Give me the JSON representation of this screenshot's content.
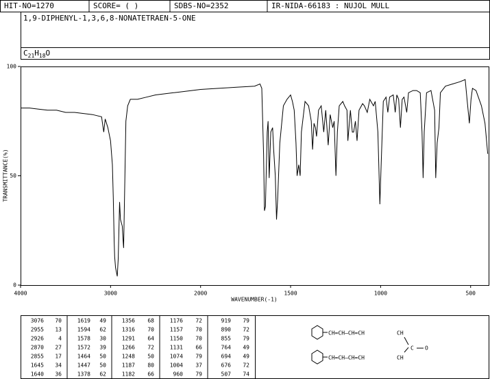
{
  "header": {
    "hit": "HIT-NO=1270",
    "score": "SCORE= (   )",
    "sdbs": "SDBS-NO=2352",
    "method": "IR-NIDA-66183 : NUJOL MULL",
    "name": "1,9-DIPHENYL-1,3,6,8-NONATETRAEN-5-ONE",
    "formula": [
      "C",
      "21",
      "H",
      "18",
      "O"
    ]
  },
  "chart_data": {
    "type": "line",
    "y_label": "TRANSMITTANCE(%)",
    "x_label": "WAVENUMBER(-1)",
    "color": "#000000",
    "xlim": [
      4000,
      400
    ],
    "xticks": [
      4000,
      3000,
      2000,
      1500,
      1000,
      500
    ],
    "ylim": [
      0,
      100
    ],
    "yticks": [
      0,
      50,
      100
    ],
    "x": [
      4000,
      3900,
      3800,
      3700,
      3600,
      3500,
      3400,
      3300,
      3200,
      3100,
      3076,
      3060,
      3030,
      3020,
      3000,
      2980,
      2970,
      2960,
      2955,
      2945,
      2926,
      2915,
      2900,
      2890,
      2870,
      2860,
      2855,
      2845,
      2830,
      2810,
      2780,
      2700,
      2600,
      2500,
      2400,
      2300,
      2200,
      2100,
      2000,
      1900,
      1800,
      1700,
      1670,
      1660,
      1650,
      1645,
      1640,
      1630,
      1625,
      1619,
      1610,
      1600,
      1594,
      1585,
      1578,
      1572,
      1560,
      1540,
      1520,
      1500,
      1490,
      1480,
      1470,
      1464,
      1455,
      1447,
      1440,
      1420,
      1400,
      1385,
      1378,
      1370,
      1362,
      1356,
      1345,
      1330,
      1316,
      1305,
      1291,
      1280,
      1266,
      1258,
      1248,
      1240,
      1230,
      1210,
      1200,
      1187,
      1182,
      1176,
      1168,
      1157,
      1150,
      1140,
      1131,
      1120,
      1100,
      1090,
      1074,
      1060,
      1040,
      1030,
      1015,
      1004,
      995,
      985,
      970,
      960,
      950,
      930,
      919,
      910,
      900,
      890,
      880,
      870,
      855,
      845,
      820,
      800,
      780,
      770,
      764,
      758,
      745,
      720,
      700,
      694,
      686,
      676,
      668,
      640,
      600,
      560,
      530,
      520,
      507,
      498,
      490,
      470,
      440,
      420,
      405
    ],
    "values": [
      81,
      81,
      80.5,
      80,
      80,
      79,
      79,
      78.5,
      78,
      77,
      70,
      76,
      72,
      70,
      66,
      55,
      40,
      20,
      13,
      8,
      4,
      12,
      38,
      30,
      27,
      20,
      17,
      40,
      75,
      82,
      85,
      85,
      86,
      87,
      87.5,
      88,
      88.5,
      89,
      89.5,
      90,
      90.5,
      91,
      92,
      90,
      60,
      34,
      36,
      70,
      75,
      49,
      70,
      72,
      62,
      50,
      30,
      39,
      65,
      82,
      85,
      87,
      84,
      80,
      65,
      50,
      55,
      50,
      70,
      84,
      82,
      75,
      62,
      74,
      72,
      68,
      80,
      82,
      70,
      80,
      64,
      78,
      72,
      75,
      50,
      70,
      82,
      84,
      82,
      80,
      66,
      72,
      80,
      70,
      70,
      75,
      66,
      80,
      83,
      82,
      79,
      85,
      82,
      84,
      70,
      37,
      60,
      84,
      86,
      79,
      86,
      87,
      79,
      87,
      85,
      72,
      85,
      86,
      79,
      88,
      89,
      89,
      88,
      70,
      49,
      70,
      88,
      89,
      80,
      49,
      65,
      72,
      88,
      91,
      92,
      93,
      94,
      85,
      74,
      85,
      90,
      89,
      82,
      74,
      60
    ]
  },
  "table": {
    "columns": [
      [
        [
          3076,
          70
        ],
        [
          2955,
          13
        ],
        [
          2926,
          4
        ],
        [
          2870,
          27
        ],
        [
          2855,
          17
        ],
        [
          1645,
          34
        ],
        [
          1640,
          36
        ]
      ],
      [
        [
          1619,
          49
        ],
        [
          1594,
          62
        ],
        [
          1578,
          30
        ],
        [
          1572,
          39
        ],
        [
          1464,
          50
        ],
        [
          1447,
          50
        ],
        [
          1378,
          62
        ]
      ],
      [
        [
          1356,
          68
        ],
        [
          1316,
          70
        ],
        [
          1291,
          64
        ],
        [
          1266,
          72
        ],
        [
          1248,
          50
        ],
        [
          1187,
          80
        ],
        [
          1182,
          66
        ]
      ],
      [
        [
          1176,
          72
        ],
        [
          1157,
          70
        ],
        [
          1150,
          70
        ],
        [
          1131,
          66
        ],
        [
          1074,
          79
        ],
        [
          1004,
          37
        ],
        [
          960,
          79
        ]
      ],
      [
        [
          919,
          79
        ],
        [
          890,
          72
        ],
        [
          855,
          79
        ],
        [
          764,
          49
        ],
        [
          694,
          49
        ],
        [
          676,
          72
        ],
        [
          507,
          74
        ]
      ]
    ]
  },
  "structure": {
    "top": "CH=CH—CH=CH",
    "top_end": "CH",
    "carbonyl": "C",
    "oxygen": "O",
    "bottom": "CH=CH—CH=CH",
    "bottom_end": "CH"
  }
}
